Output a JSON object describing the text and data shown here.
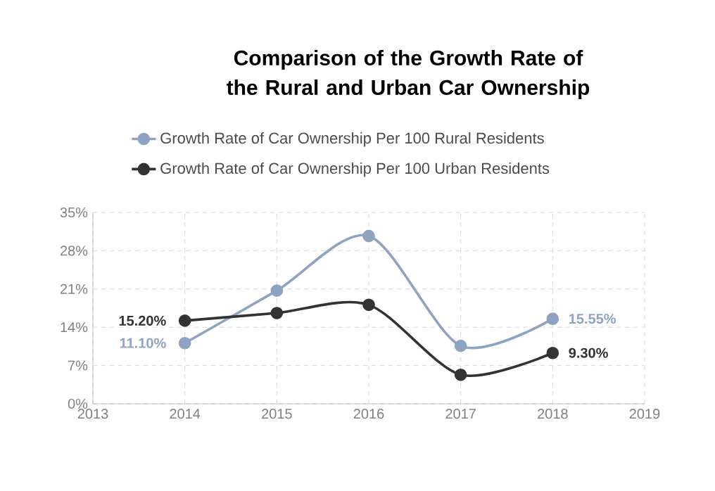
{
  "chart_data": {
    "type": "line",
    "title": "Comparison of the Growth Rate of the Rural and Urban Car Ownership",
    "x": [
      2014,
      2015,
      2016,
      2017,
      2018
    ],
    "series": [
      {
        "name": "Growth Rate of Car Ownership Per 100 Rural Residents",
        "color": "#8ea3c1",
        "values": [
          11.1,
          20.7,
          30.7,
          10.6,
          15.55
        ],
        "value_labels": [
          "11.10%",
          null,
          null,
          null,
          "15.55%"
        ]
      },
      {
        "name": "Growth Rate of Car Ownership Per 100 Urban Residents",
        "color": "#333333",
        "values": [
          15.2,
          16.6,
          18.1,
          5.3,
          9.3
        ],
        "value_labels": [
          "15.20%",
          null,
          null,
          null,
          "9.30%"
        ]
      }
    ],
    "xlim": [
      2013,
      2019
    ],
    "xticks": [
      2013,
      2014,
      2015,
      2016,
      2017,
      2018,
      2019
    ],
    "ylim": [
      0,
      35
    ],
    "yticks": [
      {
        "value": 0,
        "label": "0%"
      },
      {
        "value": 7,
        "label": "7%"
      },
      {
        "value": 14,
        "label": "14%"
      },
      {
        "value": 21,
        "label": "21%"
      },
      {
        "value": 28,
        "label": "28%"
      },
      {
        "value": 35,
        "label": "35%"
      }
    ],
    "grid": true,
    "legend": "top",
    "marker": "circle",
    "line_style": "solid"
  }
}
